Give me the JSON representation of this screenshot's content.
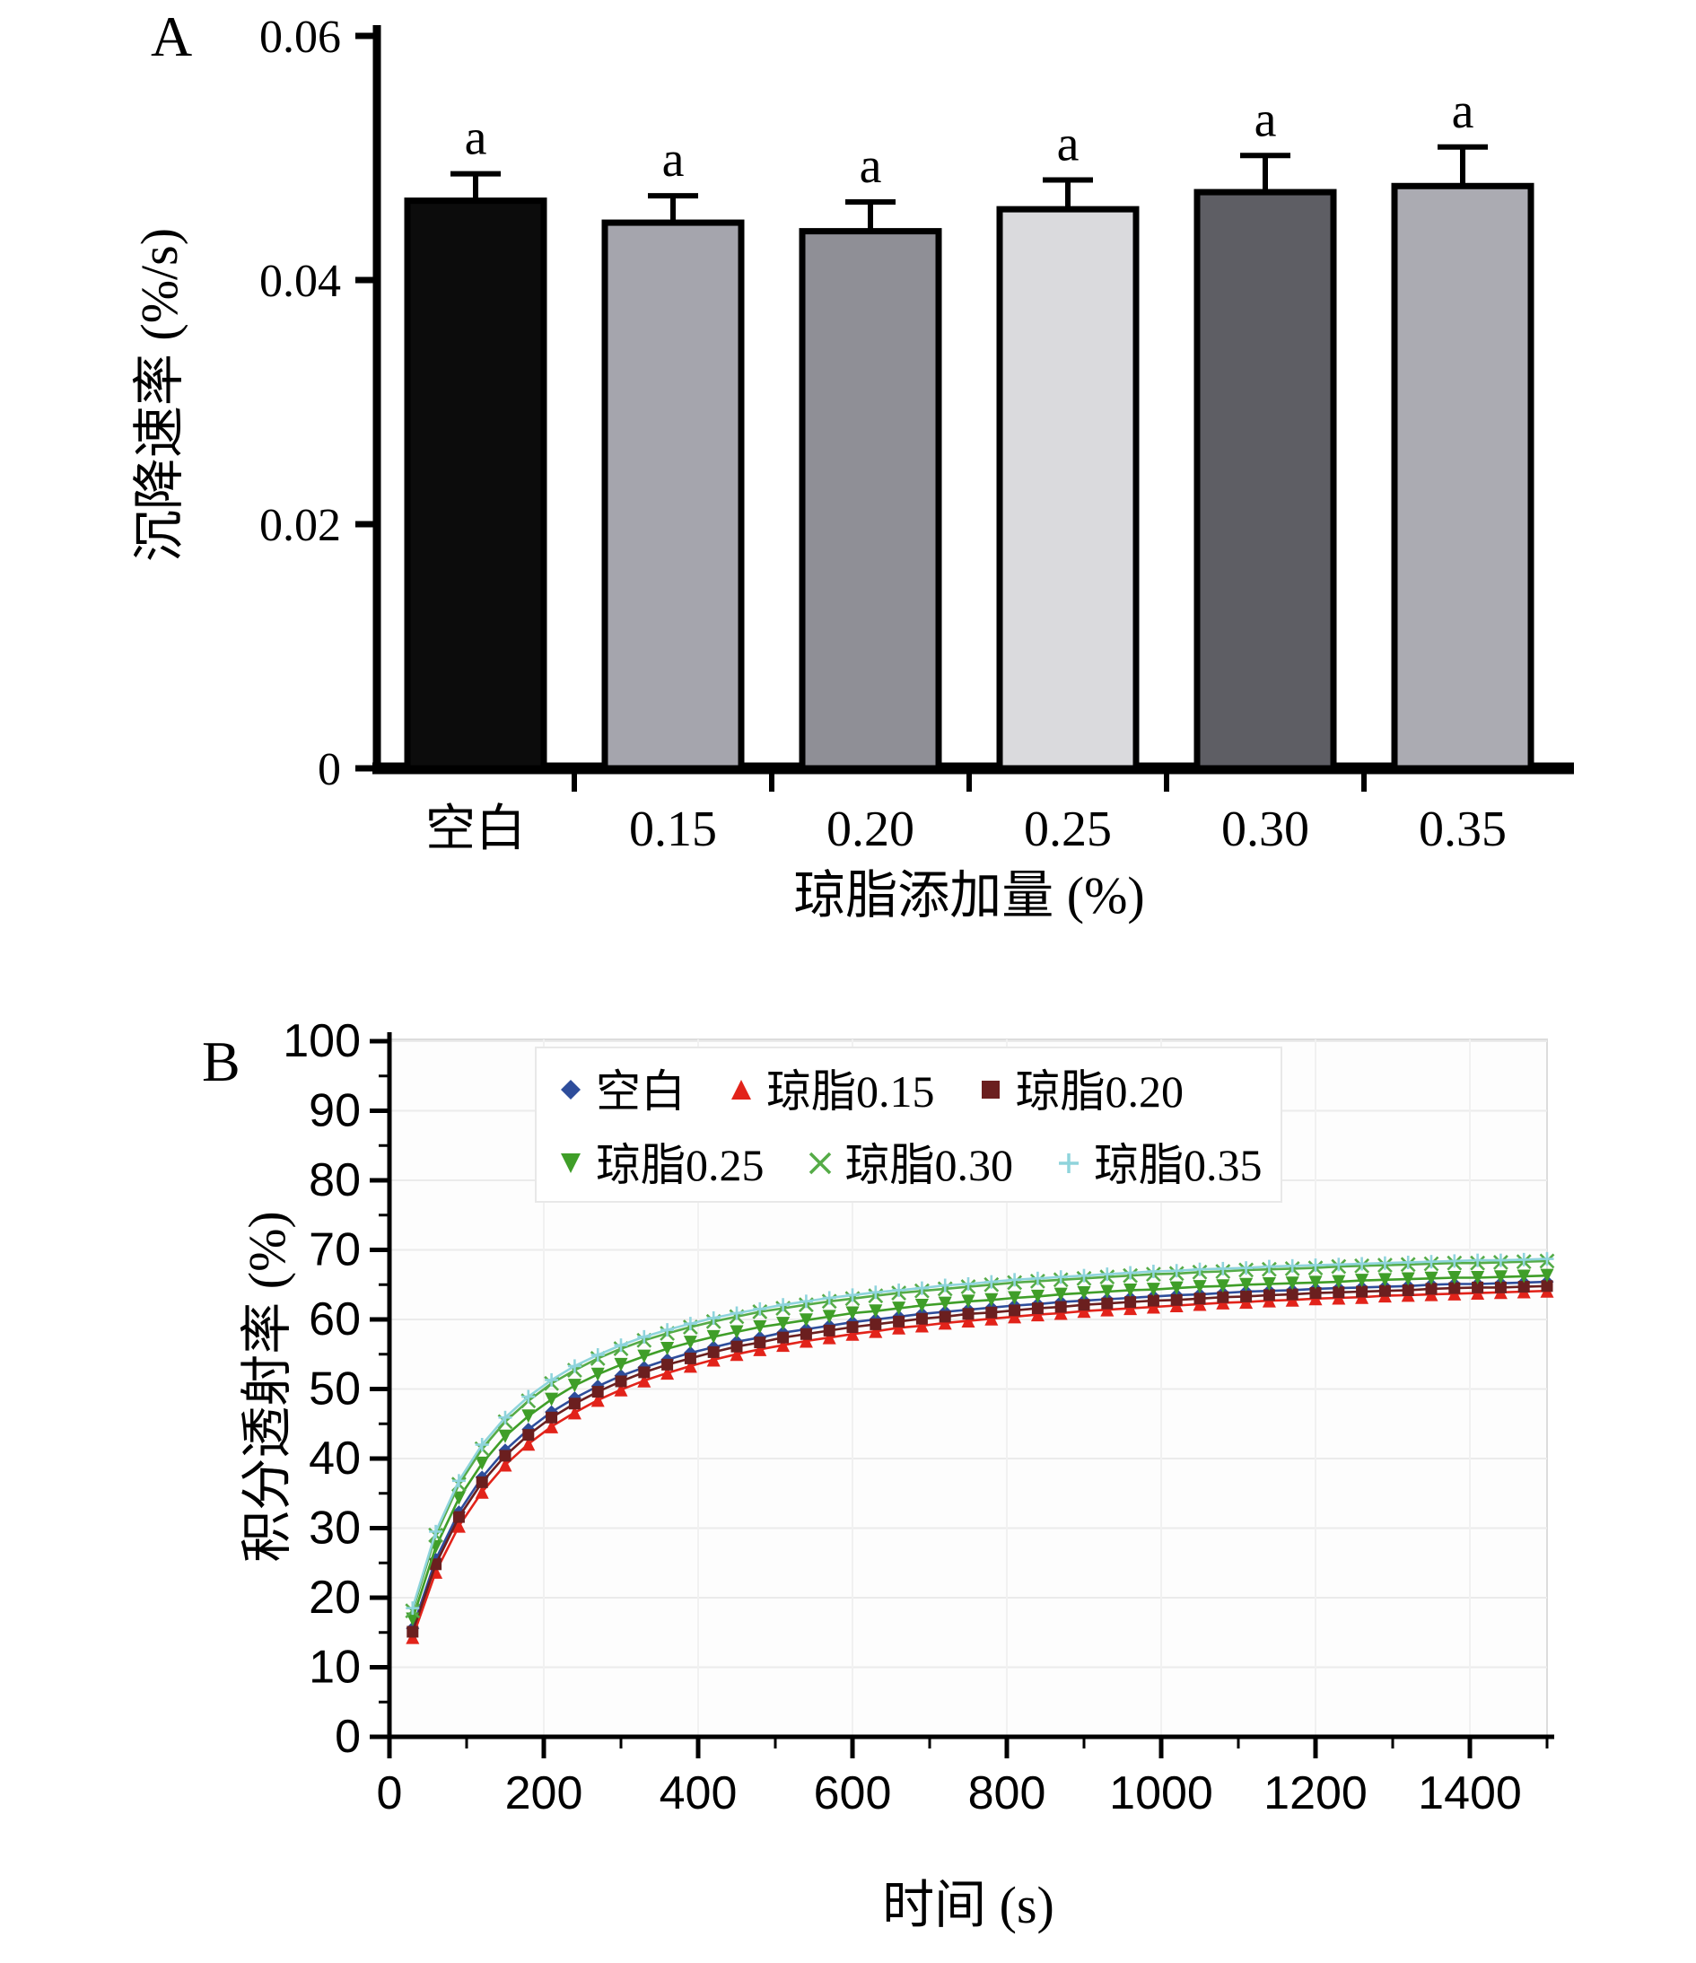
{
  "panels": {
    "a_label": "A",
    "b_label": "B"
  },
  "chart_data": [
    {
      "id": "sedimentation-rate-bar",
      "type": "bar",
      "title": "",
      "xlabel": "琼脂添加量 (%)",
      "ylabel": "沉降速率 (%/s)",
      "categories": [
        "空白",
        "0.15",
        "0.20",
        "0.25",
        "0.30",
        "0.35"
      ],
      "values": [
        0.0465,
        0.0447,
        0.044,
        0.0458,
        0.0472,
        0.0477
      ],
      "errors": [
        0.0022,
        0.0022,
        0.0024,
        0.0024,
        0.003,
        0.0032
      ],
      "annotations": [
        "a",
        "a",
        "a",
        "a",
        "a",
        "a"
      ],
      "bar_colors": [
        "#0c0c0c",
        "#a5a5ad",
        "#8f8f96",
        "#dadadd",
        "#5e5e64",
        "#ababb2"
      ],
      "ylim": [
        0,
        0.06
      ],
      "ytick_values": [
        0,
        0.02,
        0.04,
        0.06
      ],
      "ytick_labels": [
        "0",
        "0.02",
        "0.04",
        "0.06"
      ],
      "grid": false
    },
    {
      "id": "integral-transmittance-line",
      "type": "line",
      "title": "",
      "xlabel": "时间 (s)",
      "ylabel": "积分透射率 (%)",
      "xlim": [
        0,
        1500
      ],
      "ylim": [
        0,
        100
      ],
      "xticks": [
        0,
        200,
        400,
        600,
        800,
        1000,
        1200,
        1400
      ],
      "yticks": [
        0,
        10,
        20,
        30,
        40,
        50,
        60,
        70,
        80,
        90,
        100
      ],
      "grid": true,
      "legend_position": "top-inside",
      "x": [
        30,
        60,
        90,
        120,
        150,
        180,
        210,
        240,
        270,
        300,
        330,
        360,
        390,
        420,
        450,
        480,
        510,
        540,
        570,
        600,
        630,
        660,
        690,
        720,
        750,
        780,
        810,
        840,
        870,
        900,
        930,
        960,
        990,
        1020,
        1050,
        1080,
        1110,
        1140,
        1170,
        1200,
        1230,
        1260,
        1290,
        1320,
        1350,
        1380,
        1410,
        1440,
        1470,
        1500
      ],
      "series": [
        {
          "name": "空白",
          "color": "#2e4d9b",
          "marker": "diamond",
          "values": [
            15.6,
            25.5,
            32.3,
            37.3,
            41.2,
            44.2,
            46.7,
            48.7,
            50.4,
            51.9,
            53.1,
            54.2,
            55.2,
            56.0,
            56.8,
            57.4,
            58.1,
            58.6,
            59.1,
            59.6,
            60.0,
            60.4,
            60.8,
            61.1,
            61.4,
            61.7,
            62.0,
            62.2,
            62.5,
            62.7,
            62.9,
            63.1,
            63.3,
            63.5,
            63.6,
            63.8,
            64.0,
            64.1,
            64.2,
            64.4,
            64.5,
            64.6,
            64.7,
            64.8,
            65.0,
            65.1,
            65.1,
            65.2,
            65.3,
            65.4
          ]
        },
        {
          "name": "琼脂0.15",
          "color": "#e2231a",
          "marker": "triangle-up",
          "values": [
            14.3,
            23.7,
            30.3,
            35.2,
            39.1,
            42.1,
            44.6,
            46.6,
            48.4,
            49.9,
            51.2,
            52.3,
            53.3,
            54.2,
            55.0,
            55.7,
            56.3,
            56.9,
            57.4,
            57.9,
            58.3,
            58.8,
            59.1,
            59.5,
            59.8,
            60.1,
            60.4,
            60.7,
            60.9,
            61.2,
            61.4,
            61.6,
            61.8,
            62.0,
            62.2,
            62.4,
            62.5,
            62.7,
            62.8,
            63.0,
            63.1,
            63.2,
            63.4,
            63.5,
            63.6,
            63.7,
            63.8,
            63.9,
            64.0,
            64.1
          ]
        },
        {
          "name": "琼脂0.20",
          "color": "#6b1f1f",
          "marker": "square",
          "values": [
            15.1,
            24.8,
            31.6,
            36.6,
            40.4,
            43.4,
            45.9,
            47.9,
            49.6,
            51.1,
            52.4,
            53.5,
            54.4,
            55.3,
            56.1,
            56.7,
            57.4,
            57.9,
            58.4,
            58.9,
            59.3,
            59.7,
            60.1,
            60.4,
            60.8,
            61.0,
            61.3,
            61.6,
            61.8,
            62.1,
            62.3,
            62.5,
            62.7,
            62.8,
            63.0,
            63.2,
            63.3,
            63.5,
            63.6,
            63.8,
            63.9,
            64.0,
            64.1,
            64.2,
            64.4,
            64.5,
            64.6,
            64.6,
            64.7,
            64.8
          ]
        },
        {
          "name": "琼脂0.25",
          "color": "#3f9e28",
          "marker": "triangle-down",
          "values": [
            16.9,
            27.3,
            34.3,
            39.3,
            43.2,
            46.1,
            48.5,
            50.5,
            52.1,
            53.5,
            54.7,
            55.8,
            56.7,
            57.5,
            58.2,
            58.9,
            59.4,
            59.9,
            60.4,
            60.9,
            61.2,
            61.6,
            62.0,
            62.3,
            62.6,
            62.8,
            63.1,
            63.3,
            63.6,
            63.8,
            64.0,
            64.2,
            64.3,
            64.5,
            64.7,
            64.8,
            65.0,
            65.1,
            65.2,
            65.3,
            65.4,
            65.6,
            65.7,
            65.8,
            65.9,
            66.0,
            66.0,
            66.1,
            66.2,
            66.3
          ]
        },
        {
          "name": "琼脂0.30",
          "color": "#55ab47",
          "marker": "x",
          "values": [
            18.1,
            29.0,
            36.3,
            41.4,
            45.3,
            48.3,
            50.8,
            52.7,
            54.4,
            55.8,
            57.0,
            58.0,
            58.9,
            59.7,
            60.4,
            61.1,
            61.6,
            62.1,
            62.6,
            63.0,
            63.4,
            63.8,
            64.1,
            64.4,
            64.7,
            65.0,
            65.3,
            65.5,
            65.7,
            65.9,
            66.1,
            66.3,
            66.5,
            66.6,
            66.8,
            66.9,
            67.1,
            67.2,
            67.3,
            67.4,
            67.6,
            67.7,
            67.8,
            67.9,
            68.0,
            68.1,
            68.1,
            68.2,
            68.3,
            68.4
          ]
        },
        {
          "name": "琼脂0.35",
          "color": "#8fd4dc",
          "marker": "plus",
          "values": [
            18.5,
            29.5,
            36.8,
            42.0,
            45.9,
            48.9,
            51.3,
            53.3,
            54.9,
            56.3,
            57.5,
            58.5,
            59.4,
            60.2,
            60.9,
            61.5,
            62.1,
            62.6,
            63.1,
            63.5,
            63.9,
            64.2,
            64.5,
            64.9,
            65.1,
            65.4,
            65.7,
            65.9,
            66.1,
            66.3,
            66.5,
            66.7,
            66.9,
            67.0,
            67.2,
            67.3,
            67.4,
            67.6,
            67.7,
            67.8,
            67.9,
            68.0,
            68.1,
            68.2,
            68.3,
            68.4,
            68.5,
            68.5,
            68.6,
            68.7
          ]
        }
      ]
    }
  ]
}
